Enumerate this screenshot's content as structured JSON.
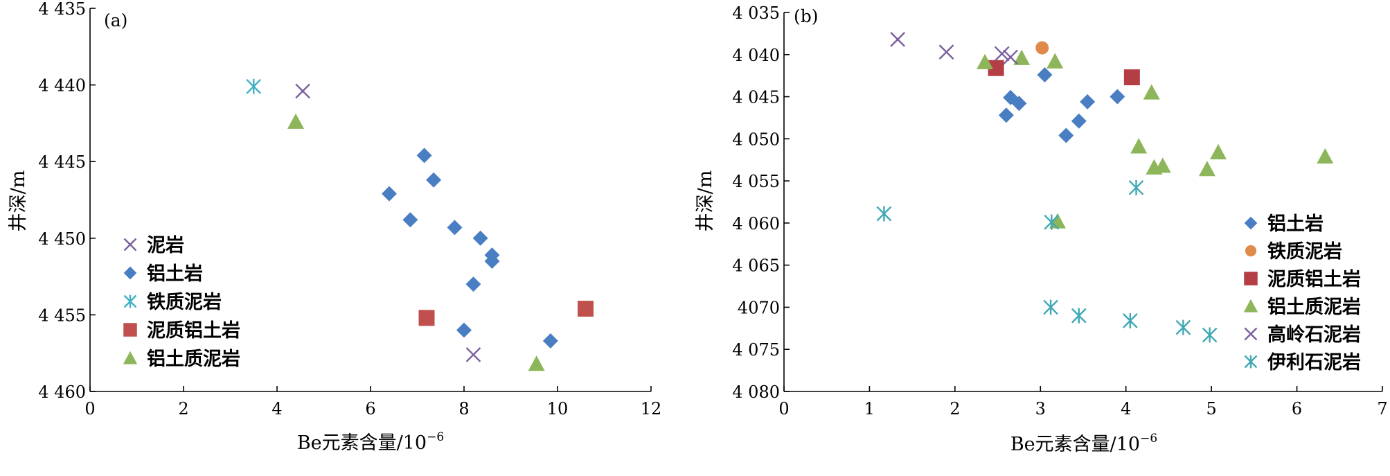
{
  "chart_data": [
    {
      "panel_label": "(a)",
      "type": "scatter",
      "xlabel": "Be元素含量/10",
      "xlabel_exp": "−6",
      "ylabel": "井深/m",
      "xlim": [
        0,
        12
      ],
      "ylim": [
        4435,
        4460
      ],
      "y_inverted": true,
      "xticks": [
        {
          "v": 0,
          "t": "0"
        },
        {
          "v": 2,
          "t": "2"
        },
        {
          "v": 4,
          "t": "4"
        },
        {
          "v": 6,
          "t": "6"
        },
        {
          "v": 8,
          "t": "8"
        },
        {
          "v": 10,
          "t": "10"
        },
        {
          "v": 12,
          "t": "12"
        }
      ],
      "yticks": [
        {
          "v": 4435,
          "t": "4 435"
        },
        {
          "v": 4440,
          "t": "4 440"
        },
        {
          "v": 4445,
          "t": "4 445"
        },
        {
          "v": 4450,
          "t": "4 450"
        },
        {
          "v": 4455,
          "t": "4 455"
        },
        {
          "v": 4460,
          "t": "4 460"
        }
      ],
      "legend_position": "left",
      "series": [
        {
          "name": "泥岩",
          "marker": "x",
          "color": "#7a5e9c",
          "points": [
            [
              4.55,
              4440.4
            ],
            [
              8.2,
              4457.6
            ]
          ]
        },
        {
          "name": "铝土岩",
          "marker": "diamond",
          "color": "#4a7ec2",
          "points": [
            [
              7.15,
              4444.6
            ],
            [
              7.35,
              4446.2
            ],
            [
              6.4,
              4447.1
            ],
            [
              6.85,
              4448.8
            ],
            [
              7.8,
              4449.3
            ],
            [
              8.35,
              4450.0
            ],
            [
              8.6,
              4451.1
            ],
            [
              8.6,
              4451.5
            ],
            [
              8.2,
              4453.0
            ],
            [
              8.0,
              4456.0
            ],
            [
              9.85,
              4456.7
            ]
          ]
        },
        {
          "name": "铁质泥岩",
          "marker": "asterisk",
          "color": "#3fb0c6",
          "points": [
            [
              3.5,
              4440.1
            ]
          ]
        },
        {
          "name": "泥质铝土岩",
          "marker": "square",
          "color": "#c0504d",
          "points": [
            [
              7.2,
              4455.2
            ],
            [
              10.6,
              4454.6
            ]
          ]
        },
        {
          "name": "铝土质泥岩",
          "marker": "triangle",
          "color": "#8db55a",
          "points": [
            [
              4.4,
              4442.4
            ],
            [
              9.55,
              4458.2
            ]
          ]
        }
      ]
    },
    {
      "panel_label": "(b)",
      "type": "scatter",
      "xlabel": "Be元素含量/10",
      "xlabel_exp": "−6",
      "ylabel": "井深/m",
      "xlim": [
        0,
        7
      ],
      "ylim": [
        4035,
        4080
      ],
      "y_inverted": true,
      "xticks": [
        {
          "v": 0,
          "t": "0"
        },
        {
          "v": 1,
          "t": "1"
        },
        {
          "v": 2,
          "t": "2"
        },
        {
          "v": 3,
          "t": "3"
        },
        {
          "v": 4,
          "t": "4"
        },
        {
          "v": 5,
          "t": "5"
        },
        {
          "v": 6,
          "t": "6"
        },
        {
          "v": 7,
          "t": "7"
        }
      ],
      "yticks": [
        {
          "v": 4035,
          "t": "4 035"
        },
        {
          "v": 4040,
          "t": "4 040"
        },
        {
          "v": 4045,
          "t": "4 045"
        },
        {
          "v": 4050,
          "t": "4 050"
        },
        {
          "v": 4055,
          "t": "4 055"
        },
        {
          "v": 4060,
          "t": "4 060"
        },
        {
          "v": 4065,
          "t": "4 065"
        },
        {
          "v": 4070,
          "t": "4070"
        },
        {
          "v": 4075,
          "t": "4 075"
        },
        {
          "v": 4080,
          "t": "4 080"
        }
      ],
      "legend_position": "right",
      "series": [
        {
          "name": "铝土岩",
          "marker": "diamond",
          "color": "#4a7ec2",
          "points": [
            [
              3.05,
              4042.4
            ],
            [
              2.65,
              4045.1
            ],
            [
              2.75,
              4045.8
            ],
            [
              2.6,
              4047.2
            ],
            [
              3.55,
              4045.6
            ],
            [
              3.9,
              4045.0
            ],
            [
              3.45,
              4047.9
            ],
            [
              3.3,
              4049.6
            ]
          ]
        },
        {
          "name": "铁质泥岩",
          "marker": "circle",
          "color": "#e08a4a",
          "points": [
            [
              3.02,
              4039.2
            ]
          ]
        },
        {
          "name": "泥质铝土岩",
          "marker": "square",
          "color": "#b33e43",
          "points": [
            [
              2.48,
              4041.6
            ],
            [
              4.07,
              4042.7
            ]
          ]
        },
        {
          "name": "铝土质泥岩",
          "marker": "triangle",
          "color": "#8db55a",
          "points": [
            [
              2.35,
              4040.9
            ],
            [
              2.78,
              4040.4
            ],
            [
              3.17,
              4040.8
            ],
            [
              4.3,
              4044.5
            ],
            [
              4.15,
              4050.9
            ],
            [
              4.33,
              4053.4
            ],
            [
              4.43,
              4053.2
            ],
            [
              5.08,
              4051.6
            ],
            [
              4.95,
              4053.6
            ],
            [
              6.33,
              4052.1
            ],
            [
              3.2,
              4059.8
            ]
          ]
        },
        {
          "name": "高岭石泥岩",
          "marker": "x",
          "color": "#7a5e9c",
          "points": [
            [
              1.33,
              4038.2
            ],
            [
              1.9,
              4039.7
            ],
            [
              2.55,
              4039.9
            ],
            [
              2.65,
              4040.3
            ]
          ]
        },
        {
          "name": "伊利石泥岩",
          "marker": "asterisk",
          "color": "#3fa8b5",
          "points": [
            [
              1.17,
              4058.9
            ],
            [
              3.13,
              4059.9
            ],
            [
              4.12,
              4055.8
            ],
            [
              3.12,
              4070.0
            ],
            [
              3.45,
              4071.0
            ],
            [
              4.05,
              4071.6
            ],
            [
              4.67,
              4072.4
            ],
            [
              4.98,
              4073.3
            ]
          ]
        }
      ]
    }
  ]
}
